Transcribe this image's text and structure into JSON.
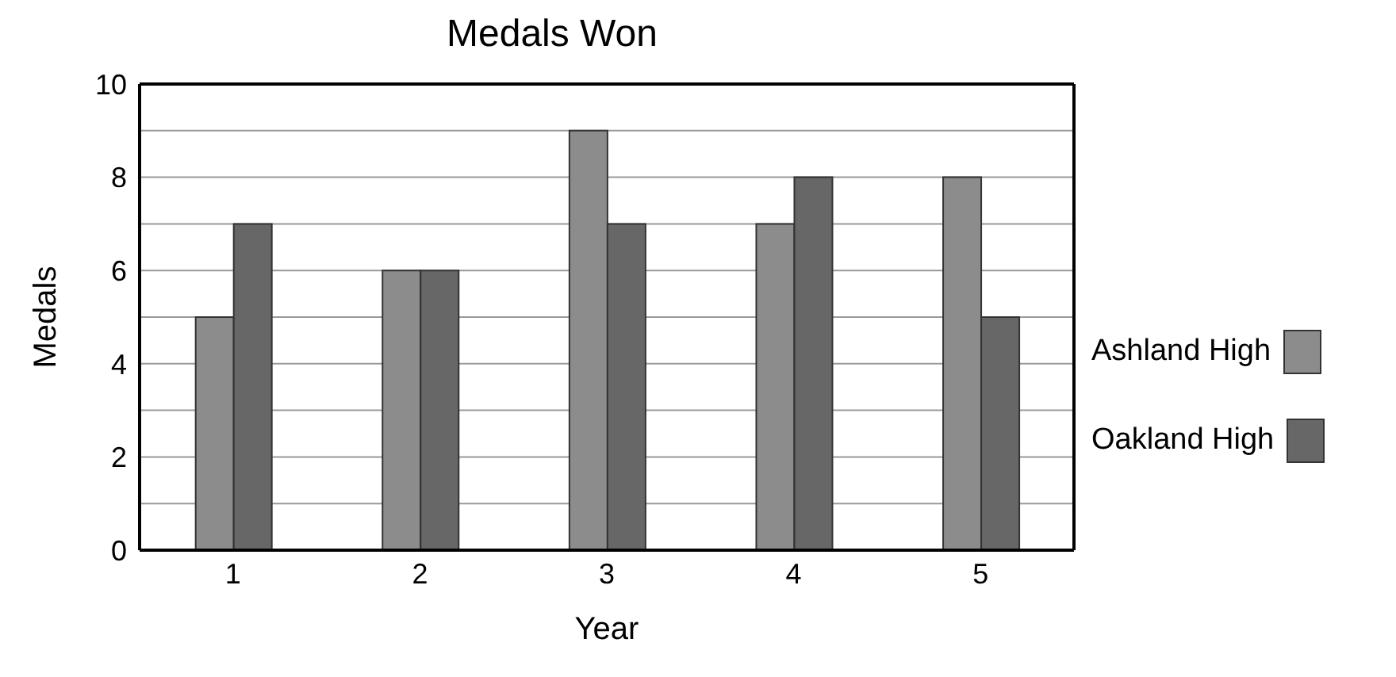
{
  "chart_data": {
    "type": "bar",
    "title": "Medals Won",
    "xlabel": "Year",
    "ylabel": "Medals",
    "categories": [
      "1",
      "2",
      "3",
      "4",
      "5"
    ],
    "series": [
      {
        "name": "Ashland High",
        "color": "#8c8c8c",
        "values": [
          5,
          6,
          9,
          7,
          8
        ]
      },
      {
        "name": "Oakland High",
        "color": "#676767",
        "values": [
          7,
          6,
          7,
          8,
          5
        ]
      }
    ],
    "ylim": [
      0,
      10
    ],
    "yticks": [
      0,
      {
        "value": 1,
        "label": null
      },
      2,
      {
        "value": 3,
        "label": null
      },
      4,
      {
        "value": 5,
        "label": null
      },
      6,
      {
        "value": 7,
        "label": null
      },
      8,
      {
        "value": 9,
        "label": null
      },
      10
    ],
    "grid": "y",
    "legend": "right"
  }
}
